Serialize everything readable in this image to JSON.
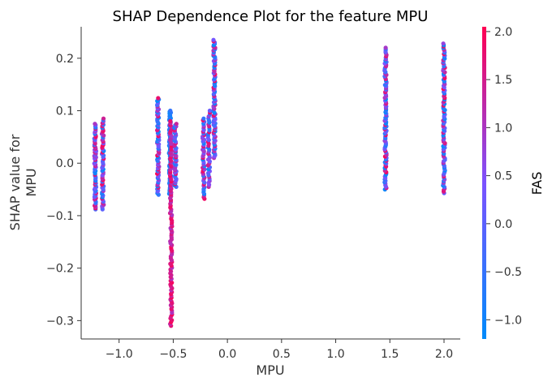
{
  "chart_data": {
    "type": "scatter",
    "title": "SHAP Dependence Plot for the feature MPU",
    "xlabel": "MPU",
    "ylabel_lines": [
      "SHAP value for",
      "MPU"
    ],
    "xlim": [
      -1.35,
      2.15
    ],
    "ylim": [
      -0.335,
      0.26
    ],
    "xticks": [
      -1.0,
      -0.5,
      0.0,
      0.5,
      1.0,
      1.5,
      2.0
    ],
    "xtick_labels": [
      "−1.0",
      "−0.5",
      "0.0",
      "0.5",
      "1.0",
      "1.5",
      "2.0"
    ],
    "yticks": [
      -0.3,
      -0.2,
      -0.1,
      0.0,
      0.1,
      0.2
    ],
    "ytick_labels": [
      "−0.3",
      "−0.2",
      "−0.1",
      "0.0",
      "0.1",
      "0.2"
    ],
    "colorbar": {
      "label": "FAS",
      "range": [
        -1.2,
        2.05
      ],
      "ticks": [
        -1.0,
        -0.5,
        0.0,
        0.5,
        1.0,
        1.5,
        2.0
      ],
      "tick_labels": [
        "−1.0",
        "−0.5",
        "0.0",
        "0.5",
        "1.0",
        "1.5",
        "2.0"
      ],
      "color_low": "#008bfb",
      "color_mid": "#7c52ff",
      "color_high": "#ff0052"
    },
    "clusters": [
      {
        "x": -1.22,
        "ymin": -0.088,
        "ymax": 0.075,
        "c_low": -1.2,
        "c_high": 2.0,
        "n": 70
      },
      {
        "x": -1.15,
        "ymin": -0.088,
        "ymax": 0.085,
        "c_low": -1.2,
        "c_high": 2.0,
        "n": 60
      },
      {
        "x": -0.64,
        "ymin": -0.06,
        "ymax": 0.124,
        "c_low": -1.2,
        "c_high": 2.0,
        "n": 70
      },
      {
        "x": -0.53,
        "ymin": -0.06,
        "ymax": 0.1,
        "c_low": -1.2,
        "c_high": -0.4,
        "n": 90
      },
      {
        "x": -0.52,
        "ymin": -0.31,
        "ymax": 0.08,
        "c_low": 1.0,
        "c_high": 2.0,
        "n": 110
      },
      {
        "x": -0.48,
        "ymin": -0.045,
        "ymax": 0.075,
        "c_low": -1.0,
        "c_high": 2.0,
        "n": 50
      },
      {
        "x": -0.22,
        "ymin": -0.068,
        "ymax": 0.085,
        "c_low": -1.2,
        "c_high": 2.0,
        "n": 50
      },
      {
        "x": -0.17,
        "ymin": -0.045,
        "ymax": 0.1,
        "c_low": -1.2,
        "c_high": 2.0,
        "n": 40
      },
      {
        "x": -0.12,
        "ymin": 0.01,
        "ymax": 0.235,
        "c_low": -1.2,
        "c_high": 2.0,
        "n": 90
      },
      {
        "x": 1.46,
        "ymin": -0.05,
        "ymax": 0.22,
        "c_low": -1.2,
        "c_high": 2.0,
        "n": 100
      },
      {
        "x": 2.0,
        "ymin": -0.057,
        "ymax": 0.228,
        "c_low": -1.2,
        "c_high": 2.0,
        "n": 100
      }
    ]
  }
}
